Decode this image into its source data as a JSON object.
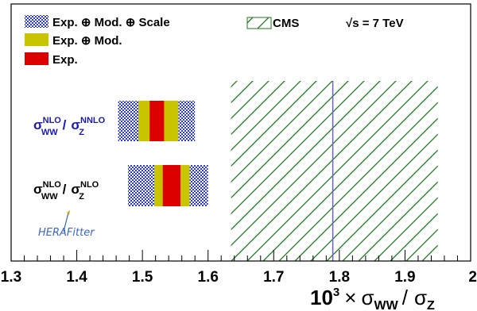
{
  "chart_data": {
    "type": "bar",
    "title": "",
    "xlabel": {
      "prefix": "10",
      "exponent": "3",
      "times": "×",
      "num_sym": "σ",
      "num_sub": "WW",
      "slash": "/",
      "den_sym": "σ",
      "den_sub": "Z"
    },
    "ylabel": "",
    "xlim": [
      1.3,
      2.0
    ],
    "xticks": [
      "1.3",
      "1.4",
      "1.5",
      "1.6",
      "1.7",
      "1.8",
      "1.9",
      "2"
    ],
    "legend": {
      "placement": "top-left",
      "entries": [
        {
          "name": "Exp. ⊕ Mod. ⊕ Scale",
          "color": "#2a3ad6",
          "pattern": "checker"
        },
        {
          "name": "Exp. ⊕ Mod.",
          "color": "#c8c400"
        },
        {
          "name": "Exp.",
          "color": "#dd0000"
        },
        {
          "name": "CMS",
          "color": "#1e7a1e",
          "pattern": "hatch"
        }
      ]
    },
    "energy_label": "√s = 7 TeV",
    "logo": "HERAFitter",
    "cms": {
      "central": 1.79,
      "band": [
        1.635,
        1.95
      ],
      "color": "#1e7a1e"
    },
    "predictions": [
      {
        "label": {
          "sym1": "σ",
          "sup1": "NLO",
          "sub1": "WW",
          "slash": "/",
          "sym2": "σ",
          "sup2": "NNLO",
          "sub2": "Z"
        },
        "label_color": "#1a1ab0",
        "central": 1.522,
        "exp": [
          1.511,
          1.533
        ],
        "exp_mod": [
          1.494,
          1.555
        ],
        "total": [
          1.463,
          1.58
        ]
      },
      {
        "label": {
          "sym1": "σ",
          "sup1": "NLO",
          "sub1": "WW",
          "slash": "/",
          "sym2": "σ",
          "sup2": "NLO",
          "sub2": "Z"
        },
        "label_color": "#000000",
        "central": 1.545,
        "exp": [
          1.531,
          1.558
        ],
        "exp_mod": [
          1.518,
          1.572
        ],
        "total": [
          1.478,
          1.6
        ]
      }
    ]
  }
}
